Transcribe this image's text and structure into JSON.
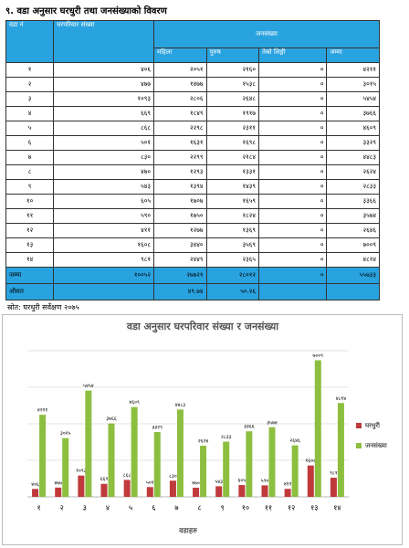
{
  "title": "९. वडा अनुसार घरधुरी तथा जनसंख्याको विवरण",
  "table": {
    "columns": [
      "वडा नं",
      "घरपरिवार संख्या",
      "जनसंख्या"
    ],
    "subcolumns": [
      "महिला",
      "पुरुष",
      "तेस्रो लिङ्गी",
      "जम्मा"
    ],
    "rows": [
      [
        "१",
        "४०६",
        "२०५१",
        "२१६०",
        "०",
        "४२११"
      ],
      [
        "२",
        "४७७",
        "१४७७",
        "१५३८",
        "०",
        "३०१५"
      ],
      [
        "३",
        "१०९३",
        "२८०६",
        "२६४८",
        "०",
        "५४५४"
      ],
      [
        "४",
        "६६९",
        "१८४९",
        "१९१७",
        "०",
        "३७६६"
      ],
      [
        "५",
        "८६८",
        "२२९८",
        "२३११",
        "०",
        "४६०९"
      ],
      [
        "६",
        "५०१",
        "१६३१",
        "१६९८",
        "०",
        "३३२९"
      ],
      [
        "७",
        "८३०",
        "२२९९",
        "२१८४",
        "०",
        "४४८३"
      ],
      [
        "८",
        "४७०",
        "१२९३",
        "१३३१",
        "०",
        "२६२४"
      ],
      [
        "९",
        "५४३",
        "१३९४",
        "१४३९",
        "०",
        "२८३३"
      ],
      [
        "१०",
        "६०५",
        "१७०७",
        "१६५९",
        "०",
        "३३६६"
      ],
      [
        "११",
        "५९०",
        "१७५०",
        "१८२४",
        "०",
        "३५७४"
      ],
      [
        "१२",
        "४११",
        "१२७७",
        "१३६९",
        "०",
        "२६४६"
      ],
      [
        "१३",
        "१६०८",
        "३४४०",
        "३५६९",
        "०",
        "७००९"
      ],
      [
        "१४",
        "९८१",
        "२४४९",
        "२३६५",
        "०",
        "४८१४"
      ]
    ],
    "total": [
      "जम्मा",
      "१००५२",
      "२७७२१",
      "२८०१२",
      "०",
      "५५७३३"
    ],
    "average": [
      "औसत",
      "४९.७४",
      "५०.२६"
    ]
  },
  "source": "स्रोत: घरधुरी सर्वेक्षण २०७५",
  "chart_data": {
    "type": "bar",
    "title": "वडा अनुसार घरपरिवार संख्या र जनसंख्या",
    "x_label": "वडाहरु",
    "categories": [
      "१",
      "२",
      "३",
      "४",
      "५",
      "६",
      "७",
      "८",
      "९",
      "१०",
      "११",
      "१२",
      "१३",
      "१४"
    ],
    "series": [
      {
        "name": "घरधुरी",
        "color": "#c0393b",
        "values": [
          406,
          477,
          1093,
          669,
          868,
          501,
          830,
          470,
          543,
          605,
          590,
          411,
          1608,
          981
        ],
        "value_labels": [
          "४०६",
          "४७७",
          "१०९३",
          "६६९",
          "८६८",
          "५०१",
          "८३०",
          "४७०",
          "५४३",
          "६०५",
          "५९०",
          "४११",
          "१६०८",
          "९८१"
        ]
      },
      {
        "name": "जनसंख्या",
        "color": "#8cbf3f",
        "values": [
          4211,
          3015,
          5454,
          3766,
          4609,
          3329,
          4483,
          2624,
          2833,
          3366,
          3574,
          2646,
          7009,
          4814
        ],
        "value_labels": [
          "४२११",
          "३०१५",
          "५४५४",
          "३७६६",
          "४६०९",
          "३३२९",
          "४४८३",
          "२६२४",
          "२८३३",
          "३३६६",
          "३५७४",
          "२६४६",
          "७००९",
          "४८१४"
        ]
      }
    ]
  }
}
